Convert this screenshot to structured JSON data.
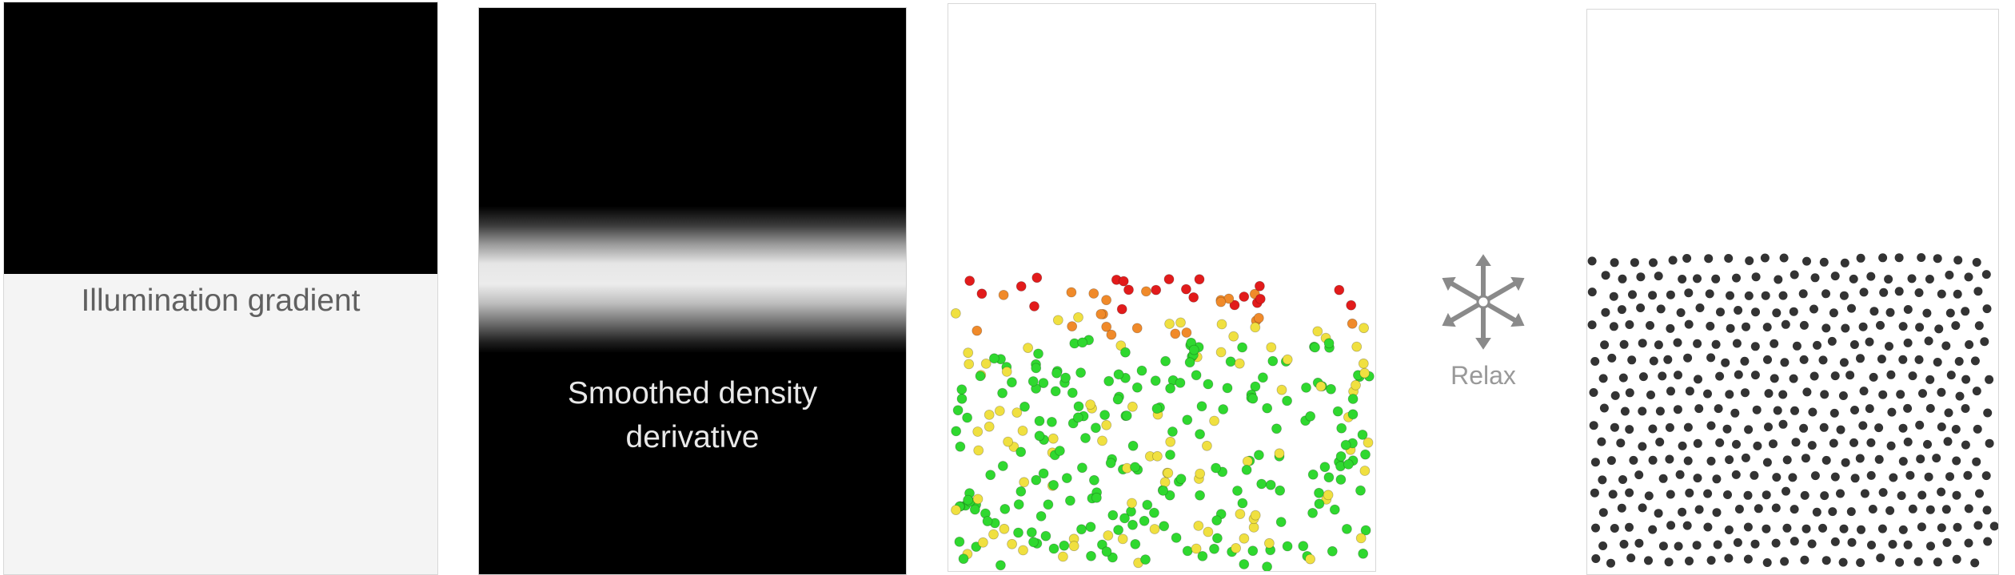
{
  "panels": {
    "illumination": {
      "label": "Illumination gradient"
    },
    "density": {
      "label_line1": "Smoothed density",
      "label_line2": "derivative"
    },
    "relax": {
      "label": "Relax",
      "icon": "relax-arrows-icon"
    }
  },
  "colors": {
    "dark": "#000000",
    "light_area": "#f4f4f4",
    "dot_green": "#2fd82f",
    "dot_yellow": "#f0e040",
    "dot_orange": "#f08a2a",
    "dot_red": "#e21b1b",
    "relaxed_dot": "#333333",
    "label_gray": "#999999"
  }
}
